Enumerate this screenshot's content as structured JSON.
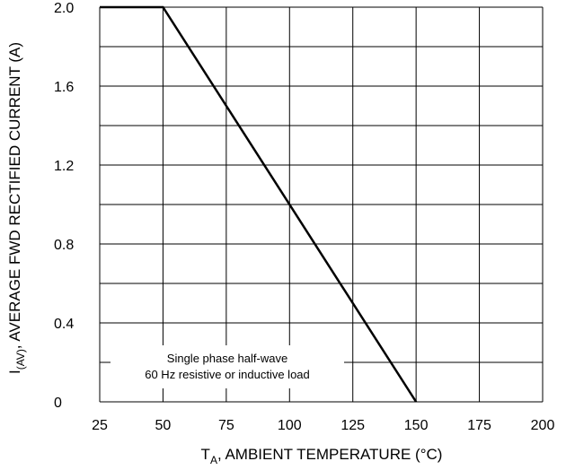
{
  "chart_data": {
    "type": "line",
    "title": "",
    "xlabel_base": "T",
    "xlabel_sub": "A",
    "xlabel_rest": ", AMBIENT TEMPERATURE (°C)",
    "ylabel_base": "I",
    "ylabel_sub": "(AV)",
    "ylabel_rest": ", AVERAGE FWD RECTIFIED CURRENT (A)",
    "xlim": [
      25,
      200
    ],
    "ylim": [
      0,
      2.0
    ],
    "x_ticks": [
      "25",
      "50",
      "75",
      "100",
      "125",
      "150",
      "175",
      "200"
    ],
    "y_ticks": [
      "0",
      "0.4",
      "0.8",
      "1.2",
      "1.6",
      "2.0"
    ],
    "x_grid": [
      25,
      50,
      75,
      100,
      125,
      150,
      175,
      200
    ],
    "y_grid": [
      0,
      0.2,
      0.4,
      0.6,
      0.8,
      1.0,
      1.2,
      1.4,
      1.6,
      1.8,
      2.0
    ],
    "grid": true,
    "series": [
      {
        "x": [
          25,
          50,
          150
        ],
        "y": [
          2.0,
          2.0,
          0
        ]
      }
    ],
    "annotation": [
      "Single phase half-wave",
      "60 Hz resistive or inductive load"
    ]
  }
}
